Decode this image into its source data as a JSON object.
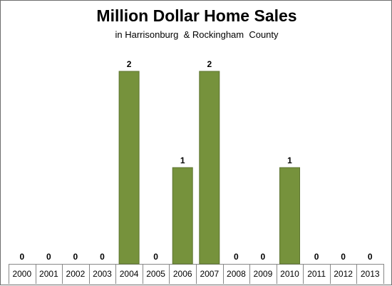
{
  "chart_data": {
    "type": "bar",
    "title": "Million Dollar Home Sales",
    "subtitle": "in Harrisonburg  & Rockingham  County",
    "xlabel": "",
    "ylabel": "",
    "categories": [
      "2000",
      "2001",
      "2002",
      "2003",
      "2004",
      "2005",
      "2006",
      "2007",
      "2008",
      "2009",
      "2010",
      "2011",
      "2012",
      "2013"
    ],
    "values": [
      0,
      0,
      0,
      0,
      2,
      0,
      1,
      2,
      0,
      0,
      1,
      0,
      0,
      0
    ],
    "ylim": [
      0,
      2.4
    ],
    "grid": false,
    "legend": "none",
    "bar_color": "#76923c"
  }
}
